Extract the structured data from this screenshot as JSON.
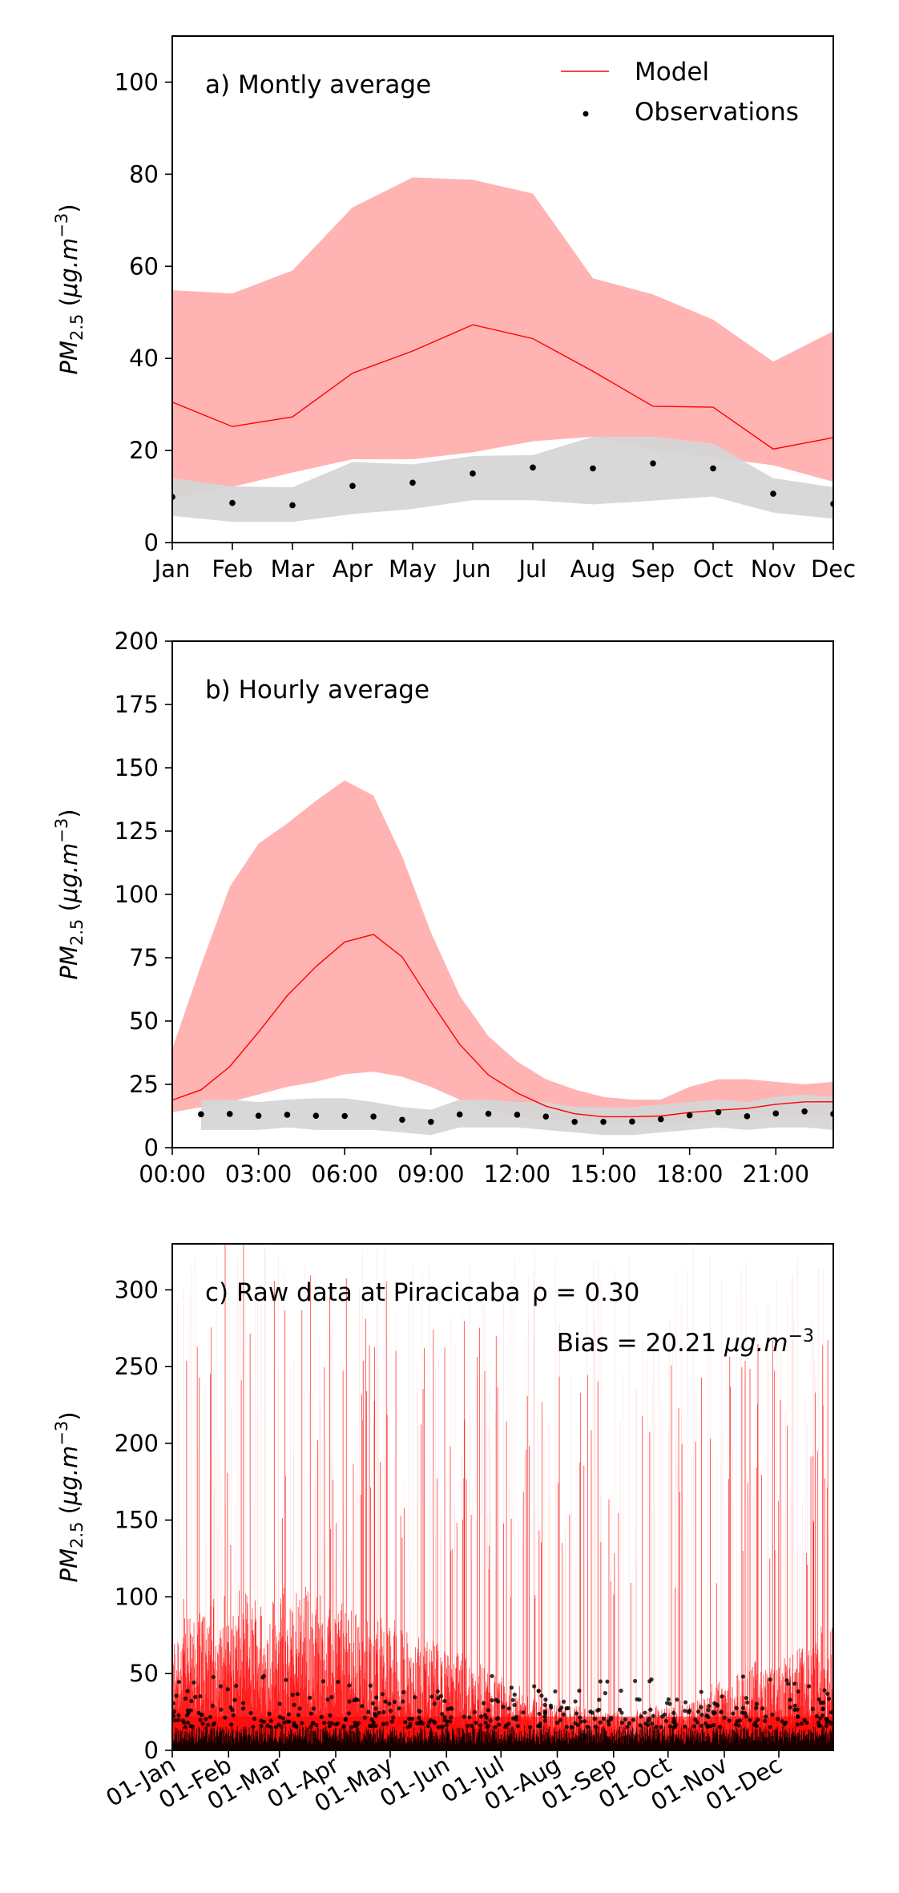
{
  "colors": {
    "model_line": "#ff0000",
    "model_band": "#ffb3b3",
    "obs_band": "#d6d6d6",
    "obs_point": "#000000"
  },
  "ylabel": {
    "base": "PM",
    "sub": "2.5",
    "unit_open": " (",
    "unit_mu": "μg.m",
    "unit_exp": "−3",
    "unit_close": ")"
  },
  "legend": {
    "model": "Model",
    "observations": "Observations"
  },
  "chart_data": [
    {
      "type": "line",
      "title": "a) Montly average",
      "ylim": [
        0,
        110
      ],
      "yticks": [
        0,
        20,
        40,
        60,
        80,
        100
      ],
      "categories": [
        "Jan",
        "Feb",
        "Mar",
        "Apr",
        "May",
        "Jun",
        "Jul",
        "Aug",
        "Sep",
        "Oct",
        "Nov",
        "Dec"
      ],
      "legend_position": "top-right",
      "series": [
        {
          "name": "Model",
          "values": [
            30.5,
            25.2,
            27.3,
            36.8,
            41.6,
            47.3,
            44.3,
            37.2,
            29.6,
            29.4,
            20.3,
            22.8
          ],
          "band_upper": [
            54.8,
            54.1,
            59.1,
            72.8,
            79.3,
            78.8,
            75.8,
            57.4,
            53.9,
            48.4,
            39.3,
            45.9
          ],
          "band_lower": [
            9.4,
            12.1,
            15.2,
            18.1,
            18.1,
            19.6,
            22.0,
            23.0,
            20.0,
            18.5,
            16.8,
            13.2
          ]
        },
        {
          "name": "Observations",
          "values": [
            9.9,
            8.6,
            8.1,
            12.3,
            13.0,
            15.0,
            16.3,
            16.1,
            17.2,
            16.1,
            10.6,
            8.4
          ],
          "band_upper": [
            14.0,
            12.2,
            12.0,
            17.5,
            17.0,
            18.8,
            19.0,
            23.0,
            23.0,
            21.5,
            14.0,
            12.0
          ],
          "band_lower": [
            5.8,
            4.5,
            4.5,
            6.2,
            7.3,
            9.2,
            9.2,
            8.3,
            9.1,
            10.0,
            6.5,
            5.2
          ]
        }
      ]
    },
    {
      "type": "line",
      "title": "b) Hourly average",
      "ylim": [
        0,
        200
      ],
      "yticks": [
        0,
        25,
        50,
        75,
        100,
        125,
        150,
        175,
        200
      ],
      "xlim": [
        0,
        23
      ],
      "xticks": [
        0,
        3,
        6,
        9,
        12,
        15,
        18,
        21
      ],
      "xtick_labels": [
        "00:00",
        "03:00",
        "06:00",
        "09:00",
        "12:00",
        "15:00",
        "18:00",
        "21:00"
      ],
      "x": [
        0,
        1,
        2,
        3,
        4,
        5,
        6,
        7,
        8,
        9,
        10,
        11,
        12,
        13,
        14,
        15,
        16,
        17,
        18,
        19,
        20,
        21,
        22,
        23
      ],
      "series": [
        {
          "name": "Model",
          "values": [
            18.8,
            22.8,
            32.0,
            45.6,
            60.0,
            71.5,
            81.2,
            84.2,
            75.3,
            57.6,
            40.8,
            28.7,
            21.6,
            16.4,
            13.4,
            12.2,
            12.2,
            12.5,
            13.9,
            14.8,
            15.5,
            17.1,
            18.1,
            18.1
          ],
          "band_upper": [
            39.0,
            72.0,
            103.0,
            120.0,
            128.0,
            137.0,
            145.0,
            139.0,
            115.0,
            85.0,
            60.0,
            44.0,
            34.0,
            27.0,
            23.0,
            20.0,
            19.0,
            19.0,
            24.0,
            27.0,
            27.0,
            26.0,
            25.0,
            26.0
          ],
          "band_lower": [
            14.0,
            16.0,
            18.0,
            21.0,
            24.0,
            26.0,
            29.0,
            30.0,
            28.0,
            24.0,
            19.0,
            15.0,
            12.0,
            11.0,
            10.0,
            10.0,
            10.0,
            10.0,
            10.0,
            11.0,
            11.0,
            12.0,
            12.0,
            13.0
          ]
        },
        {
          "name": "Observations",
          "x": [
            1,
            2,
            3,
            4,
            5,
            6,
            7,
            8,
            9,
            10,
            11,
            12,
            13,
            14,
            15,
            16,
            17,
            18,
            19,
            20,
            21,
            22,
            23
          ],
          "values": [
            13.2,
            13.3,
            12.6,
            13.0,
            12.6,
            12.5,
            12.3,
            11.0,
            10.2,
            13.1,
            13.4,
            13.0,
            12.3,
            10.2,
            10.2,
            10.3,
            11.2,
            12.8,
            14.0,
            12.4,
            13.5,
            14.3,
            13.3
          ],
          "band_upper": [
            19.0,
            19.0,
            18.0,
            19.0,
            19.5,
            19.5,
            18.0,
            16.0,
            15.0,
            19.0,
            19.0,
            18.0,
            18.0,
            16.0,
            16.0,
            16.0,
            17.0,
            18.0,
            19.0,
            18.0,
            20.0,
            21.0,
            20.0
          ],
          "band_lower": [
            7.0,
            7.0,
            7.0,
            8.0,
            7.0,
            7.0,
            7.0,
            6.0,
            5.0,
            8.0,
            8.0,
            8.0,
            7.0,
            6.0,
            5.0,
            5.0,
            6.0,
            7.0,
            8.0,
            7.0,
            8.0,
            8.0,
            7.0
          ]
        }
      ]
    },
    {
      "type": "line",
      "title": "c) Raw data at Piracicaba",
      "annotation_rho": "ρ = 0.30",
      "annotation_bias_prefix": "Bias = 20.21 ",
      "annotation_bias_unit": "μg.m",
      "annotation_bias_exp": "−3",
      "ylim": [
        0,
        330
      ],
      "yticks": [
        0,
        50,
        100,
        150,
        200,
        250,
        300
      ],
      "x_range": [
        "2019-01-01",
        "2019-12-31"
      ],
      "xtick_dates": [
        "2019-01-01",
        "2019-02-01",
        "2019-03-01",
        "2019-04-01",
        "2019-05-01",
        "2019-06-01",
        "2019-07-01",
        "2019-08-01",
        "2019-09-01",
        "2019-10-01",
        "2019-11-01",
        "2019-12-01"
      ],
      "xtick_labels": [
        "01-Jan",
        "01-Feb",
        "01-Mar",
        "01-Apr",
        "01-May",
        "01-Jun",
        "01-Jul",
        "01-Aug",
        "01-Sep",
        "01-Oct",
        "01-Nov",
        "01-Dec"
      ],
      "rho": 0.3,
      "bias": 20.21,
      "series": [
        {
          "name": "Model",
          "style": "hourly line, peaks up to ~330"
        },
        {
          "name": "Observations",
          "style": "hourly points, mostly below ~50"
        }
      ]
    }
  ]
}
